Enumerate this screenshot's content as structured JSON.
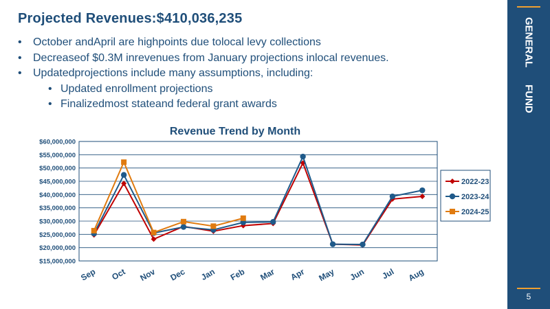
{
  "slide": {
    "title": "Projected      Revenues:$410,036,235",
    "bullets": [
      "October andApril are highpoints due tolocal levy collections",
      "Decreaseof $0.3M inrevenues from January projections inlocal revenues.",
      "Updatedprojections include many assumptions, including:"
    ],
    "sub_bullets": [
      "Updated enrollment projections",
      "Finalizedmost stateand federal grant awards"
    ],
    "bullet_glyph": "•",
    "sidebar_label": "GENERAL      FUND",
    "page_number": "5"
  },
  "colors": {
    "navy": "#1f4e79",
    "accent": "#f0a030",
    "series_2022": "#c00000",
    "series_2023": "#1f5a8a",
    "series_2024": "#e07b10"
  },
  "chart_data": {
    "type": "line",
    "title": "Revenue     Trend     by   Month",
    "categories": [
      "Sep",
      "Oct",
      "Nov",
      "Dec",
      "Jan",
      "Feb",
      "Mar",
      "Apr",
      "May",
      "Jun",
      "Jul",
      "Aug"
    ],
    "ylim": [
      15000000,
      60000000
    ],
    "yticks": [
      15000000,
      20000000,
      25000000,
      30000000,
      35000000,
      40000000,
      45000000,
      50000000,
      55000000,
      60000000
    ],
    "ytick_labels": [
      "$15,000,000",
      "$20,000,000",
      "$25,000,000",
      "$30,000,000",
      "$35,000,000",
      "$40,000,000",
      "$45,000,000",
      "$50,000,000",
      "$55,000,000",
      "$60,000,000"
    ],
    "grid": true,
    "legend_position": "right",
    "series": [
      {
        "name": "2022-23",
        "marker": "diamond",
        "values": [
          24800000,
          44200000,
          23200000,
          28000000,
          26200000,
          28300000,
          29100000,
          51900000,
          21300000,
          21000000,
          38300000,
          39300000
        ]
      },
      {
        "name": "2023-24",
        "marker": "circle",
        "values": [
          25300000,
          47400000,
          25500000,
          27800000,
          26700000,
          29500000,
          29700000,
          54300000,
          21300000,
          21200000,
          39300000,
          41600000
        ]
      },
      {
        "name": "2024-25",
        "marker": "square",
        "values": [
          26400000,
          52200000,
          25700000,
          29800000,
          28100000,
          31100000,
          null,
          null,
          null,
          null,
          null,
          null
        ]
      }
    ]
  }
}
